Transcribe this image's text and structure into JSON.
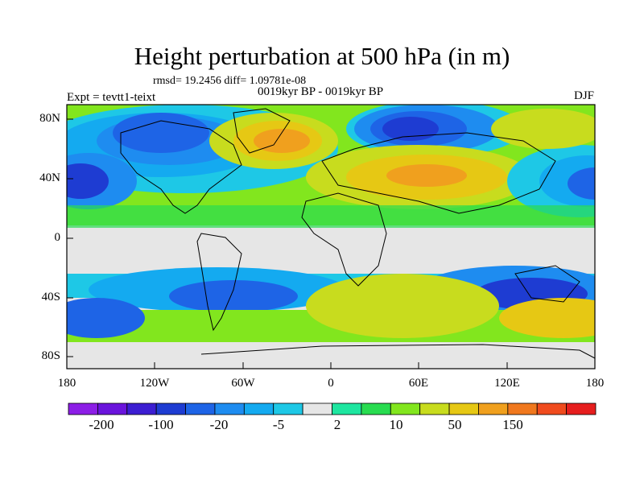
{
  "title": "Height perturbation at 500 hPa (in m)",
  "stats": "rmsd= 19.2456 diff= 1.09781e-08",
  "subtitle": "0019kyr BP - 0019kyr BP",
  "experiment": "Expt = tevtt1-teixt",
  "season": "DJF",
  "axes": {
    "y_ticks": [
      "80N",
      "40N",
      "0",
      "40S",
      "80S"
    ],
    "x_ticks": [
      "180",
      "120W",
      "60W",
      "0",
      "60E",
      "120E",
      "180"
    ]
  },
  "colorbar": {
    "labels": [
      "-200",
      "-100",
      "-20",
      "-5",
      "2",
      "10",
      "50",
      "150"
    ],
    "colors": [
      "#8c1ee6",
      "#6a14dc",
      "#3c1ed2",
      "#1e3cd2",
      "#1e64e6",
      "#1e8cf0",
      "#14aaf0",
      "#1ec8e6",
      "#e6e6e6",
      "#1ee6a0",
      "#28dc50",
      "#82e61e",
      "#c8dc1e",
      "#e6c814",
      "#f0a01e",
      "#f0781e",
      "#f04b1e",
      "#e61e1e"
    ]
  }
}
